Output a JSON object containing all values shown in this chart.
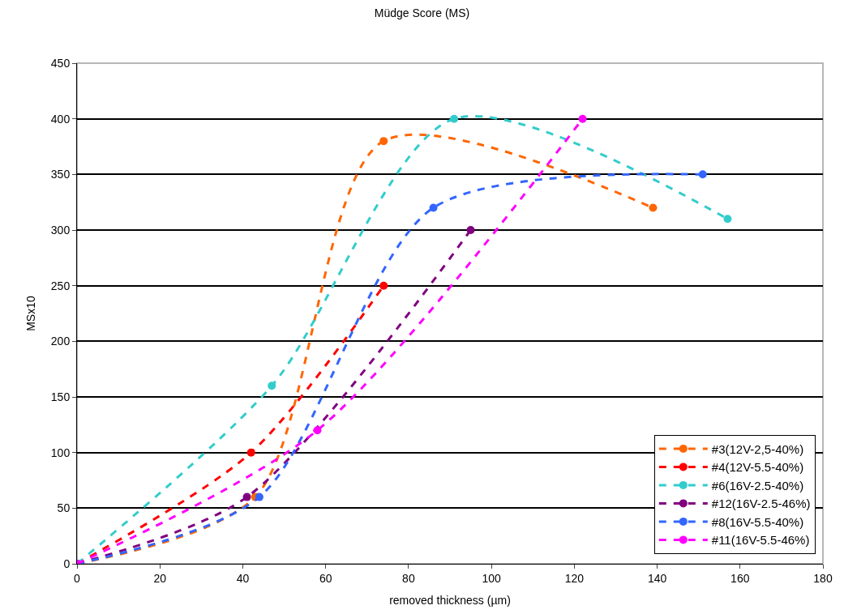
{
  "chart_data": {
    "type": "line",
    "title": "Müdge Score (MS)",
    "xlabel": "removed thickness (µm)",
    "ylabel": "MSx10",
    "xlim": [
      0,
      180
    ],
    "xticks": [
      0,
      20,
      40,
      60,
      80,
      100,
      120,
      140,
      160,
      180
    ],
    "ylim": [
      0,
      450
    ],
    "yticks": [
      0,
      50,
      100,
      150,
      200,
      250,
      300,
      350,
      400,
      450
    ],
    "grid": "y",
    "legend": "bottom right",
    "marker": "circle",
    "line_style": "dashed",
    "series": [
      {
        "name": "#3(12V-2,5-40%)",
        "color": "#ff6600",
        "x": [
          0,
          43,
          74,
          139
        ],
        "values": [
          0,
          60,
          380,
          320
        ]
      },
      {
        "name": "#4(12V-5.5-40%)",
        "color": "#ff0000",
        "x": [
          0,
          42,
          74
        ],
        "values": [
          0,
          100,
          250
        ]
      },
      {
        "name": "#6(16V-2.5-40%)",
        "color": "#33cccc",
        "x": [
          0,
          47,
          91,
          157
        ],
        "values": [
          0,
          160,
          400,
          310
        ]
      },
      {
        "name": "#12(16V-2.5-46%)",
        "color": "#800080",
        "x": [
          0,
          41,
          95
        ],
        "values": [
          0,
          60,
          300
        ]
      },
      {
        "name": "#8(16V-5.5-40%)",
        "color": "#3366ff",
        "x": [
          0,
          44,
          86,
          151
        ],
        "values": [
          0,
          60,
          320,
          350
        ]
      },
      {
        "name": "#11(16V-5.5-46%)",
        "color": "#ff00ff",
        "x": [
          0,
          58,
          122
        ],
        "values": [
          0,
          120,
          400
        ]
      }
    ]
  }
}
